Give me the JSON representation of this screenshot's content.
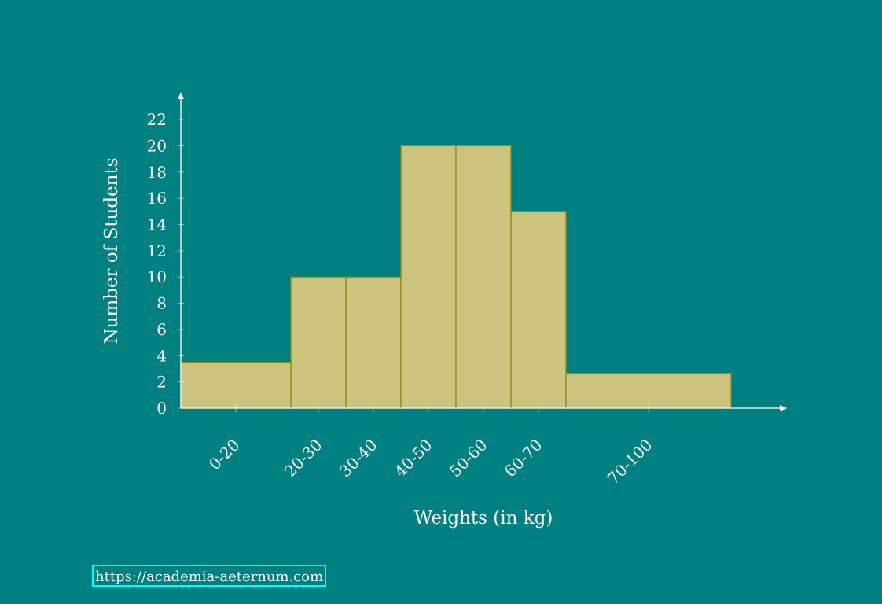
{
  "chart_data": {
    "type": "bar",
    "histogram": true,
    "categories": [
      "0-20",
      "20-30",
      "30-40",
      "40-50",
      "50-60",
      "60-70",
      "70-100"
    ],
    "bins": [
      [
        0,
        20
      ],
      [
        20,
        30
      ],
      [
        30,
        40
      ],
      [
        40,
        50
      ],
      [
        50,
        60
      ],
      [
        60,
        70
      ],
      [
        70,
        100
      ]
    ],
    "values": [
      3.5,
      10,
      10,
      20,
      20,
      15,
      2.67
    ],
    "xlabel": "Weights (in kg)",
    "ylabel": "Number of Students",
    "ylim": [
      0,
      22
    ],
    "yticks": [
      0,
      2,
      4,
      6,
      8,
      10,
      12,
      14,
      16,
      18,
      20,
      22
    ],
    "grid": false,
    "colors": {
      "background": "#008080",
      "bar_fill": "#ccc47e",
      "bar_stroke": "#8a8a10",
      "axis": "#ffffff",
      "link_border": "#00ffff"
    }
  },
  "footer": {
    "link_text": "https://academia-aeternum.com"
  }
}
